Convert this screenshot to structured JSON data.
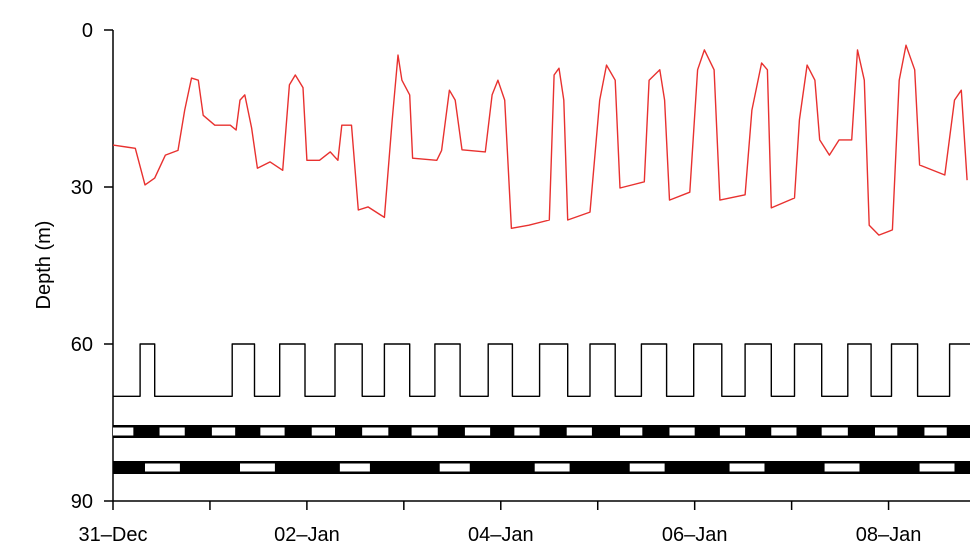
{
  "chart_data": {
    "type": "line",
    "ylabel": "Depth (m)",
    "ylim": [
      90,
      0
    ],
    "yticks": [
      0,
      30,
      60,
      90
    ],
    "xlim": [
      0,
      8.84
    ],
    "xticks": [
      {
        "value": 0,
        "label": "31–Dec"
      },
      {
        "value": 2,
        "label": "02–Jan"
      },
      {
        "value": 4,
        "label": "04–Jan"
      },
      {
        "value": 6,
        "label": "06–Jan"
      },
      {
        "value": 8,
        "label": "08–Jan"
      }
    ],
    "xminor_ticks": [
      1,
      3,
      5,
      7
    ],
    "series": [
      {
        "color": "#e8312f",
        "x": [
          0,
          0.23,
          0.33,
          0.43,
          0.54,
          0.67,
          0.74,
          0.81,
          0.88,
          0.93,
          1.05,
          1.21,
          1.27,
          1.31,
          1.36,
          1.43,
          1.49,
          1.62,
          1.75,
          1.82,
          1.88,
          1.96,
          2.0,
          2.13,
          2.24,
          2.32,
          2.36,
          2.46,
          2.53,
          2.63,
          2.8,
          2.88,
          2.94,
          2.98,
          3.06,
          3.09,
          3.34,
          3.39,
          3.47,
          3.53,
          3.6,
          3.84,
          3.91,
          3.97,
          4.04,
          4.11,
          4.29,
          4.5,
          4.55,
          4.6,
          4.65,
          4.69,
          4.92,
          5.02,
          5.09,
          5.18,
          5.23,
          5.48,
          5.53,
          5.64,
          5.69,
          5.74,
          5.95,
          6.03,
          6.1,
          6.2,
          6.26,
          6.52,
          6.59,
          6.69,
          6.75,
          6.79,
          7.03,
          7.08,
          7.16,
          7.24,
          7.29,
          7.39,
          7.49,
          7.62,
          7.68,
          7.75,
          7.8,
          7.9,
          8.04,
          8.11,
          8.18,
          8.27,
          8.32,
          8.58,
          8.68,
          8.75,
          8.81
        ],
        "values": [
          22,
          22.6,
          29.6,
          28.3,
          23.9,
          23,
          15.3,
          9.2,
          9.6,
          16.3,
          18.2,
          18.2,
          19.1,
          13.4,
          12.4,
          18.7,
          26.4,
          25.2,
          26.8,
          10.5,
          8.6,
          11,
          24.9,
          24.9,
          23.3,
          24.9,
          18.2,
          18.2,
          34.4,
          33.8,
          35.8,
          17.2,
          4.8,
          9.6,
          12.4,
          24.5,
          24.9,
          23,
          11.5,
          13.4,
          22.9,
          23.3,
          12.4,
          9.6,
          13.4,
          37.9,
          37.3,
          36.3,
          8.6,
          7.3,
          13.4,
          36.3,
          34.8,
          13.4,
          6.7,
          9.6,
          30.2,
          29,
          9.6,
          7.6,
          13.4,
          32.5,
          31,
          7.6,
          3.8,
          7.6,
          32.5,
          31.5,
          15.3,
          6.3,
          7.6,
          34,
          32.1,
          17.2,
          6.7,
          9.6,
          21,
          23.9,
          21,
          21,
          3.8,
          9.6,
          37.3,
          39.2,
          38.2,
          9.6,
          2.9,
          7.6,
          25.8,
          27.7,
          13.4,
          11.5,
          28.7
        ]
      },
      {
        "color": "#000000",
        "x": [
          0,
          0.28,
          0.28,
          0.43,
          0.43,
          1.23,
          1.23,
          1.46,
          1.46,
          1.72,
          1.72,
          1.98,
          1.98,
          2.29,
          2.29,
          2.57,
          2.57,
          2.8,
          2.8,
          3.06,
          3.06,
          3.32,
          3.32,
          3.58,
          3.58,
          3.87,
          3.87,
          4.12,
          4.12,
          4.4,
          4.4,
          4.69,
          4.69,
          4.92,
          4.92,
          5.18,
          5.18,
          5.45,
          5.45,
          5.71,
          5.71,
          5.99,
          5.99,
          6.28,
          6.28,
          6.52,
          6.52,
          6.79,
          6.79,
          7.03,
          7.03,
          7.31,
          7.31,
          7.58,
          7.58,
          7.82,
          7.82,
          8.03,
          8.03,
          8.3,
          8.3,
          8.63,
          8.63,
          8.84
        ],
        "values": [
          70,
          70,
          60,
          60,
          70,
          70,
          60,
          60,
          70,
          70,
          60,
          60,
          70,
          70,
          60,
          60,
          70,
          70,
          60,
          60,
          70,
          70,
          60,
          60,
          70,
          70,
          60,
          60,
          70,
          70,
          60,
          60,
          70,
          70,
          60,
          60,
          70,
          70,
          60,
          60,
          70,
          70,
          60,
          60,
          70,
          70,
          60,
          60,
          70,
          70,
          60,
          60,
          70,
          70,
          60,
          60,
          70,
          70,
          60,
          60,
          70,
          70,
          60,
          60
        ]
      }
    ],
    "bands": [
      {
        "color": "#000000",
        "gap_color": "#ffffff",
        "gaps": [
          [
            0,
            0.21
          ],
          [
            0.48,
            0.74
          ],
          [
            1.02,
            1.26
          ],
          [
            1.52,
            1.77
          ],
          [
            2.05,
            2.29
          ],
          [
            2.57,
            2.84
          ],
          [
            3.08,
            3.35
          ],
          [
            3.63,
            3.89
          ],
          [
            4.14,
            4.4
          ],
          [
            4.68,
            4.94
          ],
          [
            5.23,
            5.46
          ],
          [
            5.74,
            6.0
          ],
          [
            6.26,
            6.52
          ],
          [
            6.79,
            7.05
          ],
          [
            7.31,
            7.58
          ],
          [
            7.86,
            8.09
          ],
          [
            8.37,
            8.6
          ]
        ]
      },
      {
        "color": "#000000",
        "gap_color": "#ffffff",
        "gaps": [
          [
            0.33,
            0.69
          ],
          [
            1.31,
            1.67
          ],
          [
            2.34,
            2.65
          ],
          [
            3.37,
            3.68
          ],
          [
            4.35,
            4.71
          ],
          [
            5.33,
            5.69
          ],
          [
            6.36,
            6.72
          ],
          [
            7.34,
            7.7
          ],
          [
            8.32,
            8.68
          ]
        ]
      }
    ]
  }
}
